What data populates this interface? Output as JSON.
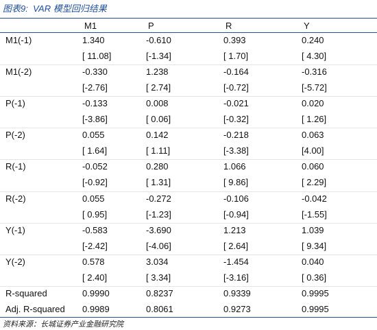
{
  "header": {
    "title": "图表9:  VAR 模型回归结果"
  },
  "table": {
    "columns": [
      "M1",
      "P",
      "R",
      "Y"
    ],
    "variables": [
      {
        "label": "M1(-1)",
        "coef": [
          "1.340",
          "-0.610",
          "0.393",
          "0.240"
        ],
        "tstat": [
          "[ 11.08]",
          "[-1.34]",
          "[ 1.70]",
          "[ 4.30]"
        ]
      },
      {
        "label": "M1(-2)",
        "coef": [
          "-0.330",
          "1.238",
          "-0.164",
          "-0.316"
        ],
        "tstat": [
          "[-2.76]",
          "[ 2.74]",
          "[-0.72]",
          "[-5.72]"
        ]
      },
      {
        "label": "P(-1)",
        "coef": [
          "-0.133",
          "0.008",
          "-0.021",
          "0.020"
        ],
        "tstat": [
          "[-3.86]",
          "[ 0.06]",
          "[-0.32]",
          "[ 1.26]"
        ]
      },
      {
        "label": "P(-2)",
        "coef": [
          "0.055",
          "0.142",
          "-0.218",
          "0.063"
        ],
        "tstat": [
          "[ 1.64]",
          "[ 1.11]",
          "[-3.38]",
          "[4.00]"
        ]
      },
      {
        "label": "R(-1)",
        "coef": [
          "-0.052",
          "0.280",
          "1.066",
          "0.060"
        ],
        "tstat": [
          "[-0.92]",
          "[ 1.31]",
          "[ 9.86]",
          "[ 2.29]"
        ]
      },
      {
        "label": "R(-2)",
        "coef": [
          "0.055",
          "-0.272",
          "-0.106",
          "-0.042"
        ],
        "tstat": [
          "[ 0.95]",
          "[-1.23]",
          "[-0.94]",
          "[-1.55]"
        ]
      },
      {
        "label": "Y(-1)",
        "coef": [
          "-0.583",
          "-3.690",
          "1.213",
          "1.039"
        ],
        "tstat": [
          "[-2.42]",
          "[-4.06]",
          "[ 2.64]",
          "[ 9.34]"
        ]
      },
      {
        "label": "Y(-2)",
        "coef": [
          "0.578",
          "3.034",
          "-1.454",
          "0.040"
        ],
        "tstat": [
          "[ 2.40]",
          "[ 3.34]",
          "[-3.16]",
          "[ 0.36]"
        ]
      }
    ],
    "stats": [
      {
        "label": "R-squared",
        "values": [
          "0.9990",
          "0.8237",
          "0.9339",
          "0.9995"
        ]
      },
      {
        "label": "Adj. R-squared",
        "values": [
          "0.9989",
          "0.8061",
          "0.9273",
          "0.9995"
        ]
      }
    ]
  },
  "source": "资料来源：长城证券产业金融研究院"
}
